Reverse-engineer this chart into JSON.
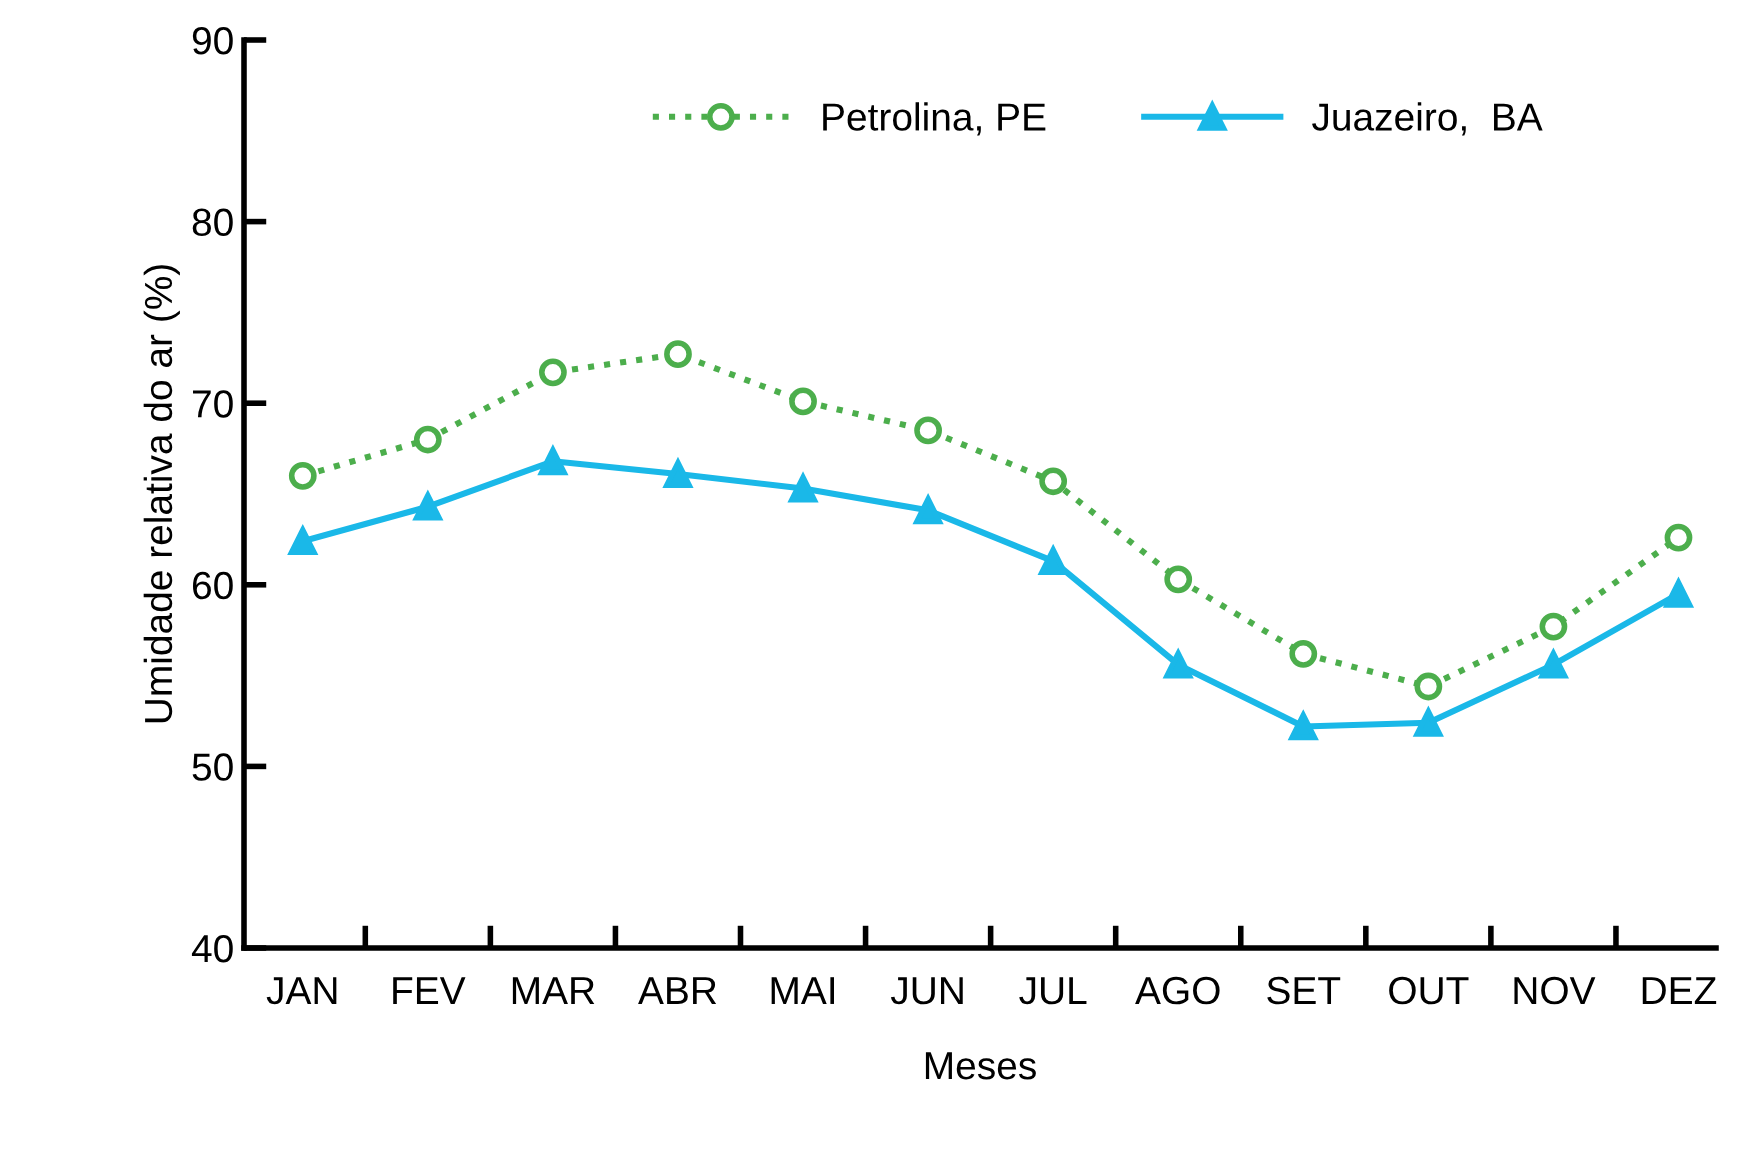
{
  "chart_data": {
    "type": "line",
    "xlabel": "Meses",
    "ylabel": "Umidade relativa do ar (%)",
    "categories": [
      "JAN",
      "FEV",
      "MAR",
      "ABR",
      "MAI",
      "JUN",
      "JUL",
      "AGO",
      "SET",
      "OUT",
      "NOV",
      "DEZ"
    ],
    "ylim": [
      40,
      90
    ],
    "yticks": [
      40,
      50,
      60,
      70,
      80,
      90
    ],
    "grid": false,
    "legend": "top",
    "series": [
      {
        "name": "Petrolina, PE",
        "color": "#4cae4c",
        "marker": "circle",
        "line_style": "dotted",
        "values": [
          66.0,
          68.0,
          71.7,
          72.7,
          70.1,
          68.5,
          65.7,
          60.3,
          56.2,
          54.4,
          57.7,
          62.6
        ]
      },
      {
        "name": "Juazeiro,  BA",
        "color": "#1ab8e8",
        "marker": "triangle",
        "line_style": "solid",
        "values": [
          62.4,
          64.3,
          66.8,
          66.1,
          65.3,
          64.1,
          61.3,
          55.6,
          52.2,
          52.4,
          55.6,
          59.5
        ]
      }
    ]
  }
}
